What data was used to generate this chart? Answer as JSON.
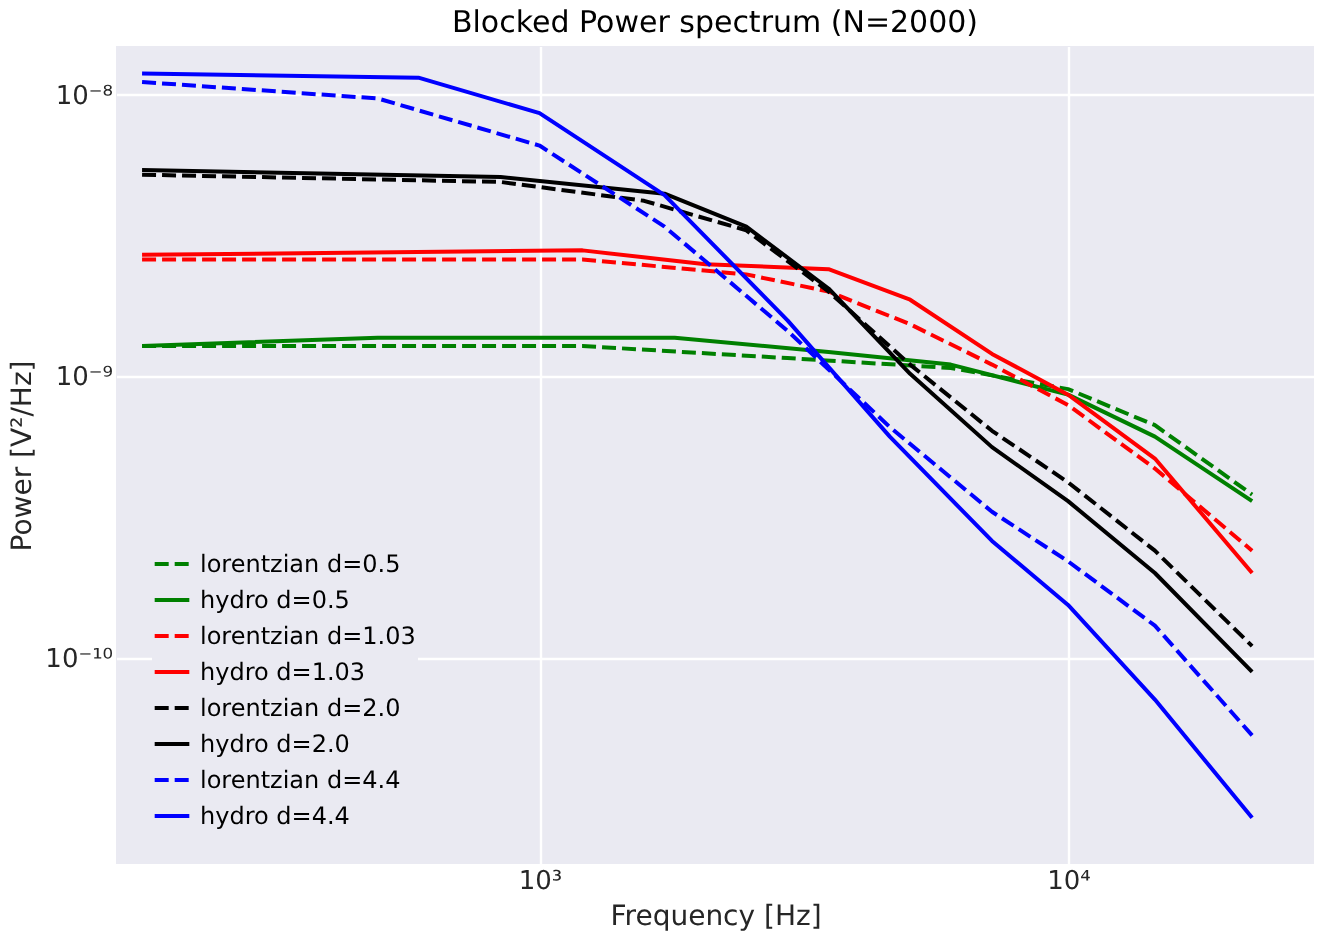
{
  "chart_data": {
    "type": "line",
    "title": "Blocked Power spectrum (N=2000)",
    "xlabel": "Frequency [Hz]",
    "ylabel": "Power [V²/Hz]",
    "log": "xy",
    "grid": true,
    "legend": "bottom left",
    "xlim": [
      158,
      29200
    ],
    "ylim": [
      1.85e-11,
      1.49e-08
    ],
    "xticks": [
      {
        "value": 1000,
        "label": "10³"
      },
      {
        "value": 10000,
        "label": "10⁴"
      }
    ],
    "yticks": [
      {
        "value": 1e-10,
        "label": "10⁻¹⁰"
      },
      {
        "value": 1e-09,
        "label": "10⁻⁹"
      },
      {
        "value": 1e-08,
        "label": "10⁻⁸"
      }
    ],
    "series": [
      {
        "name": "lorentzian d=0.5",
        "color": "#008000",
        "line_style": "dashed",
        "x": [
          177,
          1206,
          2946,
          6000,
          10000,
          14600,
          22300
        ],
        "values": [
          1.28e-09,
          1.28e-09,
          1.16e-09,
          1.07e-09,
          9e-10,
          6.7e-10,
          3.8e-10
        ]
      },
      {
        "name": "hydro d=0.5",
        "color": "#008000",
        "line_style": "solid",
        "x": [
          177,
          494,
          1802,
          3522,
          6000,
          10000,
          14600,
          22300
        ],
        "values": [
          1.28e-09,
          1.37e-09,
          1.37e-09,
          1.22e-09,
          1.1e-09,
          8.6e-10,
          6.1e-10,
          3.6e-10
        ]
      },
      {
        "name": "lorentzian d=1.03",
        "color": "#ff0000",
        "line_style": "dashed",
        "x": [
          177,
          1206,
          2462,
          3522,
          5026,
          7180,
          10000,
          14600,
          22300
        ],
        "values": [
          2.6e-09,
          2.6e-09,
          2.3e-09,
          2e-09,
          1.53e-09,
          1.1e-09,
          7.9e-10,
          4.7e-10,
          2.4e-10
        ]
      },
      {
        "name": "hydro d=1.03",
        "color": "#ff0000",
        "line_style": "solid",
        "x": [
          177,
          1206,
          2060,
          3522,
          5026,
          7180,
          10000,
          14600,
          22300
        ],
        "values": [
          2.7e-09,
          2.8e-09,
          2.5e-09,
          2.4e-09,
          1.87e-09,
          1.2e-09,
          8.6e-10,
          5.1e-10,
          2e-10
        ]
      },
      {
        "name": "lorentzian d=2.0",
        "color": "#000000",
        "line_style": "dashed",
        "x": [
          177,
          844,
          1577,
          2462,
          3522,
          5026,
          7180,
          10000,
          14600,
          22300
        ],
        "values": [
          5.2e-09,
          4.9e-09,
          4.2e-09,
          3.3e-09,
          2e-09,
          1.1e-09,
          6.4e-10,
          4.2e-10,
          2.4e-10,
          1.1e-10
        ]
      },
      {
        "name": "hydro d=2.0",
        "color": "#000000",
        "line_style": "solid",
        "x": [
          177,
          844,
          1724,
          2462,
          3522,
          5026,
          7180,
          10000,
          14600,
          22300
        ],
        "values": [
          5.4e-09,
          5.1e-09,
          4.45e-09,
          3.4e-09,
          2.05e-09,
          1.02e-09,
          5.6e-10,
          3.6e-10,
          2e-10,
          8.9e-11
        ]
      },
      {
        "name": "lorentzian d=4.4",
        "color": "#0000ff",
        "line_style": "dashed",
        "x": [
          177,
          494,
          1000,
          1724,
          2946,
          4600,
          7180,
          10000,
          14600,
          22300
        ],
        "values": [
          1.11e-08,
          9.7e-09,
          6.6e-09,
          3.4e-09,
          1.45e-09,
          6.6e-10,
          3.3e-10,
          2.2e-10,
          1.3e-10,
          5.3e-11
        ]
      },
      {
        "name": "hydro d=4.4",
        "color": "#0000ff",
        "line_style": "solid",
        "x": [
          177,
          590,
          1000,
          1724,
          2946,
          4600,
          7180,
          10000,
          14600,
          22300
        ],
        "values": [
          1.19e-08,
          1.15e-08,
          8.6e-09,
          4.4e-09,
          1.58e-09,
          6.1e-10,
          2.6e-10,
          1.54e-10,
          7.1e-11,
          2.7e-11
        ]
      }
    ]
  }
}
